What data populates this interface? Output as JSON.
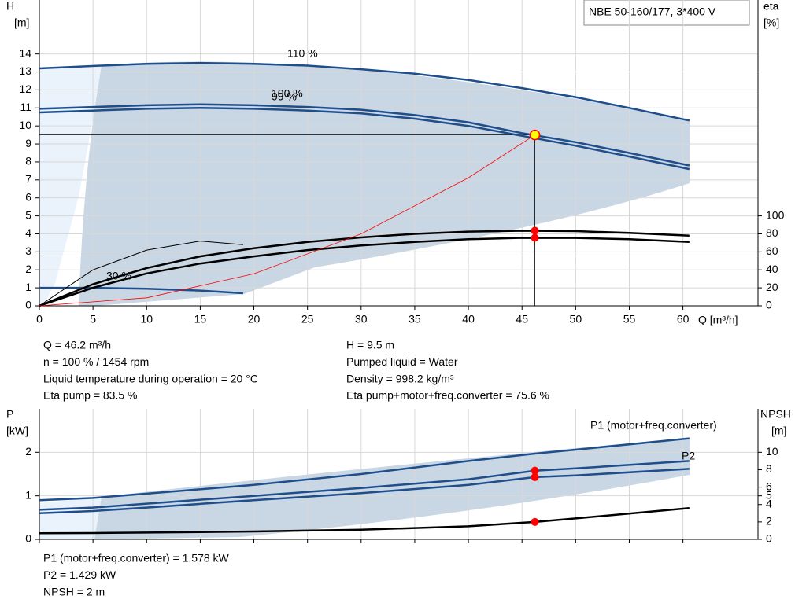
{
  "chart_data": [
    {
      "type": "line",
      "title": "NBE 50-160/177, 3*400 V",
      "ylabel": [
        "H",
        "[m]"
      ],
      "y2label": [
        "eta",
        "[%]"
      ],
      "xlabel": "Q [m³/h]",
      "xlim": [
        0,
        67
      ],
      "xticks": [
        0,
        5,
        10,
        15,
        20,
        25,
        30,
        35,
        40,
        45,
        50,
        55,
        60
      ],
      "ylim": [
        0,
        17
      ],
      "yticks": [
        0,
        1,
        2,
        3,
        4,
        5,
        6,
        7,
        8,
        9,
        10,
        11,
        12,
        13,
        14
      ],
      "y2lim": [
        0,
        340
      ],
      "y2ticks": [
        0,
        20,
        40,
        60,
        80,
        100
      ],
      "grid": true,
      "series": [
        {
          "name": "110 %",
          "color": "#1f4e8c",
          "x": [
            0,
            5.8,
            10,
            15,
            20,
            25,
            30,
            35,
            40,
            45,
            50,
            55,
            60.6
          ],
          "values": [
            13.2,
            13.35,
            13.45,
            13.5,
            13.45,
            13.35,
            13.15,
            12.9,
            12.55,
            12.1,
            11.6,
            11.0,
            10.3
          ]
        },
        {
          "name": "100 %",
          "color": "#1f4e8c",
          "x": [
            0,
            5,
            10,
            15,
            20,
            25,
            30,
            35,
            40,
            45,
            50,
            55,
            60.6
          ],
          "values": [
            10.95,
            11.05,
            11.15,
            11.2,
            11.15,
            11.05,
            10.9,
            10.6,
            10.2,
            9.6,
            9.1,
            8.5,
            7.8
          ]
        },
        {
          "name": "99 %",
          "color": "#1f4e8c",
          "x": [
            0,
            5,
            10,
            15,
            20,
            25,
            30,
            35,
            40,
            45,
            50,
            55,
            60.6
          ],
          "values": [
            10.75,
            10.85,
            10.95,
            11.0,
            10.95,
            10.85,
            10.7,
            10.4,
            10.0,
            9.45,
            8.9,
            8.3,
            7.6
          ]
        },
        {
          "name": "30 %",
          "color": "#1f4e8c",
          "x": [
            0,
            5,
            10,
            15,
            19
          ],
          "values": [
            1.0,
            1.0,
            0.95,
            0.85,
            0.7
          ]
        },
        {
          "color": "#000000",
          "axis": "y2",
          "x": [
            0,
            5,
            10,
            15,
            20,
            25,
            30,
            35,
            40,
            45,
            50,
            55,
            60.6
          ],
          "values": [
            0,
            24,
            42,
            55,
            64,
            71,
            76,
            80,
            82.5,
            83.5,
            83,
            81,
            78
          ]
        },
        {
          "color": "#000000",
          "axis": "y2",
          "x": [
            0,
            5,
            10,
            15,
            20,
            25,
            30,
            35,
            40,
            45,
            50,
            55,
            60.6
          ],
          "values": [
            0,
            20,
            36,
            47,
            55,
            62,
            67,
            71,
            74,
            75.6,
            75.5,
            74,
            71
          ]
        },
        {
          "color": "#000000",
          "axis": "y2",
          "x": [
            0,
            5,
            10,
            15,
            19
          ],
          "values": [
            0,
            40,
            62,
            72,
            68
          ]
        },
        {
          "color": "#ff0000",
          "x": [
            0,
            10,
            20,
            30,
            40,
            46.2
          ],
          "values": [
            0,
            0.445,
            1.78,
            4.0,
            7.12,
            9.5
          ]
        }
      ],
      "points": [
        {
          "x": 46.2,
          "y": 9.5,
          "color": "#ffff00"
        },
        {
          "x": 46.2,
          "y": 83.5,
          "color": "#ff0000",
          "axis": "y2"
        },
        {
          "x": 46.2,
          "y": 75.6,
          "color": "#ff0000",
          "axis": "y2"
        }
      ],
      "info": [
        [
          "Q = 46.2 m³/h",
          "n = 100 % / 1454 rpm",
          "Liquid temperature during operation = 20 °C",
          "Eta pump = 83.5 %"
        ],
        [
          "H = 9.5 m",
          "Pumped liquid = Water",
          "Density = 998.2 kg/m³",
          "Eta pump+motor+freq.converter = 75.6 %"
        ]
      ]
    },
    {
      "type": "line",
      "ylabel": [
        "P",
        "[kW]"
      ],
      "y2label": [
        "NPSH",
        "[m]"
      ],
      "xlim": [
        0,
        67
      ],
      "ylim": [
        0,
        3
      ],
      "yticks": [
        0,
        1,
        2
      ],
      "y2lim": [
        0,
        15
      ],
      "y2ticks": [
        0,
        2,
        4,
        5,
        6,
        8,
        10
      ],
      "grid": true,
      "series": [
        {
          "color": "#1f4e8c",
          "x": [
            0,
            5,
            10,
            20,
            30,
            40,
            46.2,
            50,
            60.6
          ],
          "values": [
            0.9,
            0.95,
            1.05,
            1.25,
            1.5,
            1.8,
            1.97,
            2.06,
            2.32
          ]
        },
        {
          "name": "P1 (motor+freq.converter)",
          "color": "#1f4e8c",
          "x": [
            0,
            5,
            10,
            20,
            30,
            40,
            46.2,
            50,
            60.6
          ],
          "values": [
            0.68,
            0.73,
            0.82,
            1.0,
            1.18,
            1.38,
            1.578,
            1.63,
            1.8
          ]
        },
        {
          "name": "P2",
          "color": "#1f4e8c",
          "x": [
            0,
            5,
            10,
            20,
            30,
            40,
            46.2,
            50,
            60.6
          ],
          "values": [
            0.6,
            0.65,
            0.73,
            0.9,
            1.06,
            1.25,
            1.429,
            1.47,
            1.62
          ]
        },
        {
          "color": "#000000",
          "axis": "y2",
          "x": [
            0,
            5,
            10,
            20,
            30,
            40,
            46.2,
            50,
            60.6
          ],
          "values": [
            0.7,
            0.72,
            0.78,
            0.9,
            1.1,
            1.5,
            2.0,
            2.4,
            3.6
          ]
        }
      ],
      "points": [
        {
          "x": 46.2,
          "y": 1.578,
          "color": "#ff0000"
        },
        {
          "x": 46.2,
          "y": 1.429,
          "color": "#ff0000"
        },
        {
          "x": 46.2,
          "y": 2.0,
          "color": "#ff0000",
          "axis": "y2"
        }
      ],
      "info": [
        [
          "P1 (motor+freq.converter) = 1.578 kW",
          "P2 = 1.429 kW",
          "NPSH = 2 m"
        ]
      ]
    }
  ]
}
